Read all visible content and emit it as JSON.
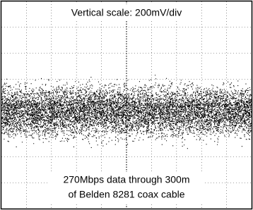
{
  "header": {
    "title": "Vertical scale: 200mV/div"
  },
  "caption": {
    "lines": [
      "270Mbps data through 300m",
      "of Belden 8281 coax cable"
    ]
  }
}
